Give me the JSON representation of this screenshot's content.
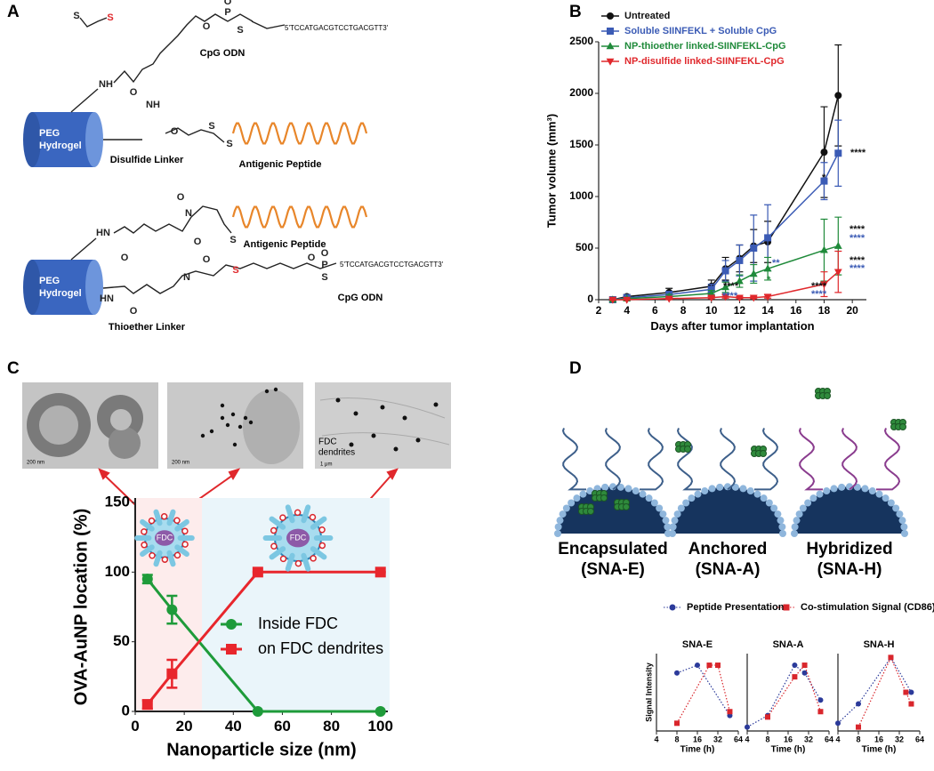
{
  "panels": {
    "a": "A",
    "b": "B",
    "c": "C",
    "d": "D"
  },
  "panel_a": {
    "top": {
      "hydrogel": [
        "PEG",
        "Hydrogel"
      ],
      "cpg": "CpG ODN",
      "sequence": "5'TCCATGACGTCCTGACGTT3'",
      "peptide": "Antigenic Peptide",
      "linker": "Disulfide Linker",
      "atoms": [
        "S",
        "S",
        "O",
        "P",
        "O",
        "S",
        "NH",
        "O",
        "NH",
        "O",
        "S",
        "S"
      ]
    },
    "bottom": {
      "hydrogel": [
        "PEG",
        "Hydrogel"
      ],
      "cpg": "CpG ODN",
      "sequence": "5'TCCATGACGTCCTGACGTT3'",
      "peptide": "Antigenic Peptide",
      "linker": "Thioether Linker",
      "atoms": [
        "O",
        "N",
        "O",
        "S",
        "HN",
        "O",
        "HN",
        "O",
        "N",
        "O",
        "S",
        "O",
        "P",
        "O",
        "S"
      ]
    }
  },
  "panel_c": {
    "scale_bars": [
      "200 nm",
      "200 nm",
      "1 μm"
    ],
    "dendrite_label": [
      "FDC",
      "dendrites"
    ],
    "cell_labels": [
      "FDC",
      "FDC"
    ]
  },
  "panel_d": {
    "labels": [
      [
        "Encapsulated",
        "(SNA-E)"
      ],
      [
        "Anchored",
        "(SNA-A)"
      ],
      [
        "Hybridized",
        "(SNA-H)"
      ]
    ]
  },
  "chart_data": [
    {
      "type": "line",
      "xlabel": "Days after tumor implantation",
      "ylabel": "Tumor volume (mm³)",
      "x": [
        3,
        4,
        7,
        10,
        11,
        12,
        13,
        14,
        18,
        19
      ],
      "xlim": [
        2,
        21
      ],
      "xticks": [
        2,
        4,
        6,
        8,
        10,
        12,
        14,
        16,
        18,
        20
      ],
      "ylim": [
        0,
        2500
      ],
      "yticks": [
        0,
        500,
        1000,
        1500,
        2000,
        2500
      ],
      "series": [
        {
          "name": "Untreated",
          "color": "#111111",
          "marker": "circle",
          "values": [
            0,
            30,
            70,
            130,
            300,
            400,
            520,
            560,
            1430,
            1980
          ],
          "errors": [
            10,
            20,
            40,
            60,
            110,
            130,
            160,
            200,
            440,
            490
          ]
        },
        {
          "name": "Soluble SIINFEKL + Soluble CpG",
          "color": "#3b5bb5",
          "marker": "square",
          "values": [
            0,
            20,
            50,
            100,
            280,
            380,
            500,
            600,
            1150,
            1420
          ],
          "errors": [
            10,
            15,
            30,
            50,
            100,
            150,
            320,
            320,
            180,
            320
          ]
        },
        {
          "name": "NP-thioether linked-SIINFEKL-CpG",
          "color": "#1f8a3a",
          "marker": "triangle",
          "values": [
            0,
            10,
            30,
            60,
            120,
            180,
            250,
            300,
            480,
            520
          ],
          "errors": [
            5,
            10,
            20,
            30,
            50,
            60,
            90,
            110,
            300,
            280
          ]
        },
        {
          "name": "NP-disulfide linked-SIINFEKL-CpG",
          "color": "#e0282c",
          "marker": "triangle-down",
          "values": [
            0,
            0,
            10,
            20,
            30,
            20,
            20,
            30,
            150,
            270
          ],
          "errors": [
            5,
            5,
            10,
            10,
            15,
            10,
            10,
            15,
            120,
            200
          ]
        }
      ],
      "annotations": [
        {
          "text": "****",
          "color": "#111111"
        },
        {
          "text": "*",
          "color": "#111111"
        },
        {
          "text": "****",
          "color": "#111111"
        },
        {
          "text": "****",
          "color": "#3b5bb5"
        },
        {
          "text": "****",
          "color": "#111111"
        },
        {
          "text": "****",
          "color": "#3b5bb5"
        },
        {
          "text": "**",
          "color": "#3b5bb5"
        },
        {
          "text": "*",
          "color": "#1f8a3a"
        },
        {
          "text": "****",
          "color": "#111111"
        },
        {
          "text": "****",
          "color": "#3b5bb5"
        },
        {
          "text": "****",
          "color": "#111111"
        },
        {
          "text": "****",
          "color": "#3b5bb5"
        }
      ]
    },
    {
      "type": "line",
      "xlabel": "Nanoparticle size (nm)",
      "ylabel": "OVA-AuNP location (%)",
      "x": [
        5,
        15,
        50,
        100
      ],
      "xlim": [
        0,
        103
      ],
      "xticks": [
        0,
        20,
        40,
        60,
        80,
        100
      ],
      "ylim": [
        0,
        150
      ],
      "yticks": [
        0,
        50,
        100,
        150
      ],
      "series": [
        {
          "name": "Inside FDC",
          "color": "#1e9b3a",
          "marker": "circle",
          "values": [
            95,
            73,
            0,
            0
          ],
          "errors": [
            3,
            10,
            0,
            0
          ]
        },
        {
          "name": "on FDC dendrites",
          "color": "#e8262c",
          "marker": "square",
          "values": [
            5,
            27,
            100,
            100
          ],
          "errors": [
            3,
            10,
            0,
            0
          ]
        }
      ]
    },
    {
      "type": "line",
      "title": "SNA-E",
      "xlabel": "Time (h)",
      "ylabel": "Signal Intensity",
      "xscale": "log",
      "xlim": [
        4,
        64
      ],
      "xticks": [
        4,
        8,
        16,
        32,
        64
      ],
      "ylim": [
        0,
        1
      ],
      "series": [
        {
          "name": "Peptide Presentation",
          "color": "#2b3a9a",
          "marker": "circle",
          "line_style": "dotted",
          "x": [
            8,
            16,
            48
          ],
          "values": [
            0.75,
            0.85,
            0.2
          ]
        },
        {
          "name": "Co-stimulation Signal (CD86)",
          "color": "#d9262c",
          "marker": "square",
          "line_style": "dotted",
          "x": [
            8,
            24,
            32,
            48
          ],
          "values": [
            0.1,
            0.85,
            0.85,
            0.25
          ]
        }
      ]
    },
    {
      "type": "line",
      "title": "SNA-A",
      "xlabel": "Time (h)",
      "xscale": "log",
      "xlim": [
        4,
        64
      ],
      "xticks": [
        4,
        8,
        16,
        32,
        64
      ],
      "ylim": [
        0,
        1
      ],
      "series": [
        {
          "name": "Peptide Presentation",
          "color": "#2b3a9a",
          "marker": "circle",
          "line_style": "dotted",
          "x": [
            4,
            8,
            20,
            28,
            48
          ],
          "values": [
            0.05,
            0.2,
            0.85,
            0.75,
            0.4
          ]
        },
        {
          "name": "Co-stimulation Signal (CD86)",
          "color": "#d9262c",
          "marker": "square",
          "line_style": "dotted",
          "x": [
            8,
            20,
            28,
            48
          ],
          "values": [
            0.18,
            0.7,
            0.85,
            0.25
          ]
        }
      ]
    },
    {
      "type": "line",
      "title": "SNA-H",
      "xlabel": "Time (h)",
      "xscale": "log",
      "xlim": [
        4,
        64
      ],
      "xticks": [
        4,
        8,
        16,
        32,
        64
      ],
      "ylim": [
        0,
        1
      ],
      "series": [
        {
          "name": "Peptide Presentation",
          "color": "#2b3a9a",
          "marker": "circle",
          "line_style": "dotted",
          "x": [
            4,
            8,
            24,
            48
          ],
          "values": [
            0.1,
            0.35,
            0.95,
            0.5
          ]
        },
        {
          "name": "Co-stimulation Signal (CD86)",
          "color": "#d9262c",
          "marker": "square",
          "line_style": "dotted",
          "x": [
            8,
            24,
            40,
            48
          ],
          "values": [
            0.05,
            0.95,
            0.5,
            0.35
          ]
        }
      ]
    }
  ]
}
